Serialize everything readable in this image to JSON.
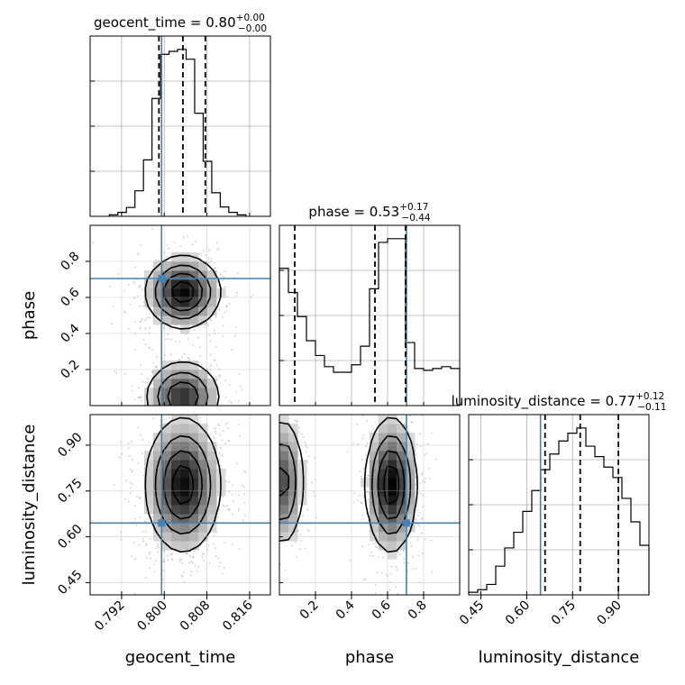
{
  "chart_data": {
    "type": "corner",
    "parameters": [
      "geocent_time",
      "phase",
      "luminosity_distance"
    ],
    "axis_labels": {
      "x": [
        "geocent_time",
        "phase",
        "luminosity_distance"
      ],
      "y": [
        "phase",
        "luminosity_distance"
      ]
    },
    "titles": {
      "geocent_time": {
        "label": "geocent_time",
        "median": "0.80",
        "plus": "+0.00",
        "minus": "−0.00"
      },
      "phase": {
        "label": "phase",
        "median": "0.53",
        "plus": "+0.17",
        "minus": "−0.44"
      },
      "luminosity_distance": {
        "label": "luminosity_distance",
        "median": "0.77",
        "plus": "+0.12",
        "minus": "−0.11"
      }
    },
    "ranges": {
      "geocent_time": [
        0.7861,
        0.8199
      ],
      "phase": [
        0.0,
        1.0
      ],
      "luminosity_distance": [
        0.41,
        1.0
      ]
    },
    "ticks": {
      "geocent_time": {
        "values": [
          0.792,
          0.8,
          0.808,
          0.816
        ],
        "labels": [
          "0.792",
          "0.800",
          "0.808",
          "0.816"
        ]
      },
      "phase": {
        "values": [
          0.2,
          0.4,
          0.6,
          0.8
        ],
        "labels": [
          "0.2",
          "0.4",
          "0.6",
          "0.8"
        ]
      },
      "luminosity_distance": {
        "values": [
          0.45,
          0.6,
          0.75,
          0.9
        ],
        "labels": [
          "0.45",
          "0.60",
          "0.75",
          "0.90"
        ]
      }
    },
    "truths": {
      "geocent_time": 0.7995,
      "phase": 0.705,
      "luminosity_distance": 0.645
    },
    "quantiles": {
      "geocent_time": [
        0.799,
        0.8035,
        0.8077
      ],
      "phase": [
        0.085,
        0.53,
        0.7
      ],
      "luminosity_distance": [
        0.66,
        0.775,
        0.9
      ]
    },
    "histograms": {
      "geocent_time": {
        "edges": [
          0.7897,
          0.7913,
          0.7929,
          0.7945,
          0.7961,
          0.7977,
          0.7993,
          0.8009,
          0.8025,
          0.8041,
          0.8057,
          0.8073,
          0.8089,
          0.8105,
          0.8121,
          0.8137,
          0.8153
        ],
        "counts": [
          0.3,
          0.8,
          1.8,
          5.2,
          11.5,
          24,
          33,
          33.6,
          34,
          32,
          21,
          11.2,
          4.8,
          1.9,
          0.8,
          0.3
        ]
      },
      "phase": {
        "edges": [
          0.0,
          0.05,
          0.1,
          0.15,
          0.2,
          0.25,
          0.3,
          0.35,
          0.4,
          0.45,
          0.5,
          0.55,
          0.6,
          0.65,
          0.7,
          0.75,
          0.8,
          0.85,
          0.9,
          0.95,
          1.0
        ],
        "counts": [
          74,
          61,
          48,
          35,
          27,
          21,
          18,
          18,
          22,
          32,
          63,
          88,
          90,
          90,
          34,
          20,
          19,
          20,
          21,
          20
        ]
      },
      "luminosity_distance": {
        "edges": [
          0.41,
          0.4395,
          0.469,
          0.4985,
          0.528,
          0.5575,
          0.587,
          0.6165,
          0.646,
          0.6755,
          0.705,
          0.7345,
          0.764,
          0.7935,
          0.823,
          0.8525,
          0.882,
          0.9115,
          0.941,
          0.9705,
          1.0
        ],
        "counts": [
          1,
          2,
          4,
          11,
          18,
          24,
          32,
          40,
          48,
          54,
          59,
          62,
          64,
          57,
          53,
          49,
          45,
          37,
          28,
          19
        ]
      }
    },
    "contours_2d": "hist2d density with 4 contour levels; phase is bimodal (modes near 0.0–0.1 and 0.55–0.7)",
    "grid": true
  },
  "style": {
    "truth_color": "#4682b4",
    "line_color": "#000000",
    "scatter_color": "#8c8c8c"
  }
}
